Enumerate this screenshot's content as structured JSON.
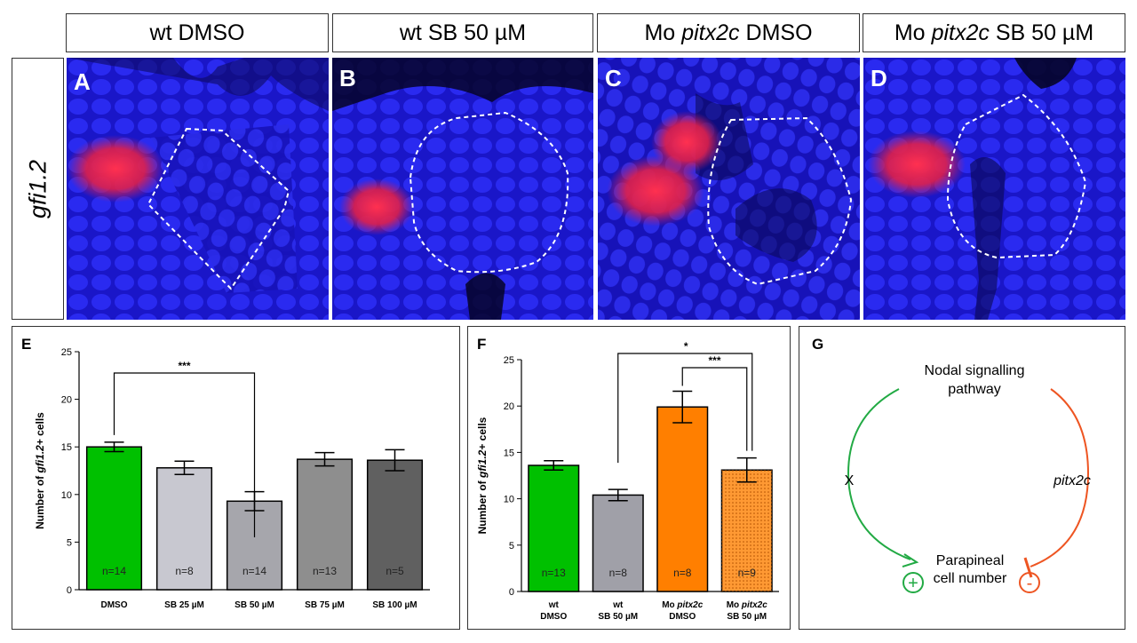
{
  "headers": [
    {
      "pre": "wt DMSO",
      "gene": "",
      "post": ""
    },
    {
      "pre": "wt SB 50 µM",
      "gene": "",
      "post": ""
    },
    {
      "pre": "Mo",
      "gene": "pitx2c",
      "post": "DMSO"
    },
    {
      "pre": "Mo",
      "gene": "pitx2c",
      "post": "SB 50 µM"
    }
  ],
  "row_label": "gfi1.2",
  "panel_letters": [
    "A",
    "B",
    "C",
    "D",
    "E",
    "F",
    "G"
  ],
  "colors": {
    "green": "#00c000",
    "orange": "#ff7f00",
    "nucleus_blue": "#1e1ee6",
    "signal_red": "#ff2040",
    "pathway_green": "#22aa44",
    "pathway_orange": "#ee5522"
  },
  "chart_data": [
    {
      "type": "bar",
      "panel": "E",
      "ylabel_pre": "Number of ",
      "ylabel_gene": "gfi1.2",
      "ylabel_post": "+ cells",
      "ylim": [
        0,
        25
      ],
      "yticks": [
        "0",
        "5",
        "10",
        "15",
        "20",
        "25"
      ],
      "categories": [
        "DMSO",
        "SB 25 µM",
        "SB 50 µM",
        "SB 75 µM",
        "SB 100 µM"
      ],
      "values": [
        15.0,
        12.8,
        9.3,
        13.7,
        13.6
      ],
      "errors": [
        0.5,
        0.7,
        1.0,
        0.7,
        1.1
      ],
      "n_labels": [
        "n=14",
        "n=8",
        "n=14",
        "n=13",
        "n=5"
      ],
      "bar_colors": [
        "#00c000",
        "#c8c8d0",
        "#a6a6ac",
        "#8e8e8e",
        "#606060"
      ],
      "significance": [
        {
          "from": 0,
          "to": 2,
          "label": "***"
        }
      ]
    },
    {
      "type": "bar",
      "panel": "F",
      "ylabel_pre": "Number of ",
      "ylabel_gene": "gfi1.2",
      "ylabel_post": "+ cells",
      "ylim": [
        0,
        25
      ],
      "yticks": [
        "0",
        "5",
        "10",
        "15",
        "20",
        "25"
      ],
      "categories": [
        {
          "line1": "wt",
          "line1_gene": "",
          "line2": "DMSO"
        },
        {
          "line1": "wt",
          "line1_gene": "",
          "line2": "SB 50 µM"
        },
        {
          "line1": "Mo",
          "line1_gene": "pitx2c",
          "line2": "DMSO"
        },
        {
          "line1": "Mo",
          "line1_gene": "pitx2c",
          "line2": "SB 50 µM"
        }
      ],
      "values": [
        13.6,
        10.4,
        19.9,
        13.1
      ],
      "errors": [
        0.5,
        0.6,
        1.7,
        1.3
      ],
      "n_labels": [
        "n=13",
        "n=8",
        "n=8",
        "n=9"
      ],
      "bar_colors": [
        "#00c000",
        "#a0a0a8",
        "#ff7f00",
        "#ff9933"
      ],
      "significance": [
        {
          "from": 1,
          "to": 3,
          "label": "*"
        },
        {
          "from": 2,
          "to": 3,
          "label": "***"
        }
      ]
    }
  ],
  "diagram": {
    "top_line1": "Nodal signalling",
    "top_line2": "pathway",
    "left_label": "X",
    "right_label": "pitx2c",
    "bottom_line1": "Parapineal",
    "bottom_line2": "cell number",
    "plus": "+",
    "minus": "-"
  }
}
